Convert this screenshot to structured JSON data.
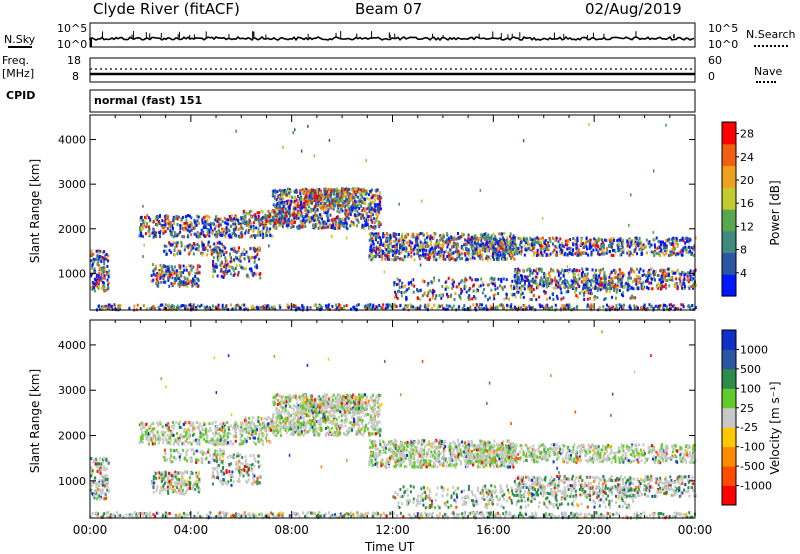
{
  "header": {
    "station": "Clyde River (fitACF)",
    "beam": "Beam 07",
    "date": "02/Aug/2019"
  },
  "top_panels": {
    "nsky_label": "N.Sky",
    "nsearch_label": "N.Search",
    "nsky_ticks": [
      "10^5",
      "10^0"
    ],
    "nsearch_ticks": [
      "10^5",
      "10^0"
    ],
    "freq_label": "Freq.",
    "freq_unit": "[MHz]",
    "freq_ticks": [
      "18",
      "8"
    ],
    "nave_label": "Nave",
    "nave_ticks": [
      "60",
      "0"
    ],
    "cpid_label": "CPID",
    "cpid_value": "normal (fast) 151"
  },
  "colors": {
    "power_scale": [
      "#0018ff",
      "#2b56a8",
      "#3f8a7e",
      "#58a84e",
      "#c2cc2e",
      "#f0a020",
      "#f06010",
      "#ff0000"
    ],
    "velocity_scale": [
      "#ff0000",
      "#ff4a00",
      "#ff8a00",
      "#ffc800",
      "#c8c8c8",
      "#5fcc2a",
      "#2e8c4a",
      "#2b56a8",
      "#1030c8"
    ]
  },
  "chart_data": [
    {
      "type": "heatmap",
      "name": "power",
      "ylabel": "Slant Range [km]",
      "yticks": [
        "4000",
        "3000",
        "2000",
        "1000"
      ],
      "ylim": [
        180,
        4550
      ],
      "xticks": [],
      "colorbar_label": "Power [dB]",
      "colorbar_ticks": [
        "28",
        "24",
        "20",
        "16",
        "12",
        "8",
        "4"
      ],
      "clim": [
        0,
        30
      ]
    },
    {
      "type": "heatmap",
      "name": "velocity",
      "ylabel": "Slant Range [km]",
      "yticks": [
        "4000",
        "3000",
        "2000",
        "1000"
      ],
      "ylim": [
        180,
        4550
      ],
      "xticks": [
        "00:00",
        "04:00",
        "08:00",
        "12:00",
        "16:00",
        "20:00",
        "00:00"
      ],
      "xlabel": "Time UT",
      "colorbar_label": "Velocity [m s⁻¹]",
      "colorbar_ticks": [
        "1000",
        "500",
        "100",
        "25",
        "-25",
        "-100",
        "-500",
        "-1000"
      ],
      "clim": [
        -1000,
        1000
      ]
    }
  ]
}
